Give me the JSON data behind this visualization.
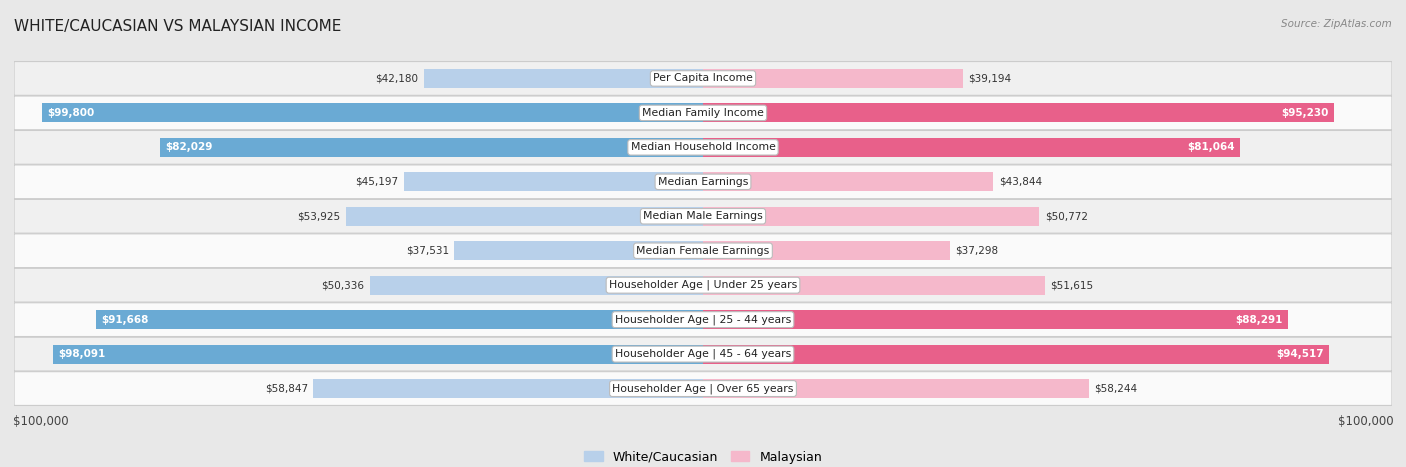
{
  "title": "WHITE/CAUCASIAN VS MALAYSIAN INCOME",
  "source": "Source: ZipAtlas.com",
  "categories": [
    "Per Capita Income",
    "Median Family Income",
    "Median Household Income",
    "Median Earnings",
    "Median Male Earnings",
    "Median Female Earnings",
    "Householder Age | Under 25 years",
    "Householder Age | 25 - 44 years",
    "Householder Age | 45 - 64 years",
    "Householder Age | Over 65 years"
  ],
  "white_values": [
    42180,
    99800,
    82029,
    45197,
    53925,
    37531,
    50336,
    91668,
    98091,
    58847
  ],
  "malaysian_values": [
    39194,
    95230,
    81064,
    43844,
    50772,
    37298,
    51615,
    88291,
    94517,
    58244
  ],
  "white_labels": [
    "$42,180",
    "$99,800",
    "$82,029",
    "$45,197",
    "$53,925",
    "$37,531",
    "$50,336",
    "$91,668",
    "$98,091",
    "$58,847"
  ],
  "malaysian_labels": [
    "$39,194",
    "$95,230",
    "$81,064",
    "$43,844",
    "$50,772",
    "$37,298",
    "$51,615",
    "$88,291",
    "$94,517",
    "$58,244"
  ],
  "max_value": 100000,
  "white_color_low": "#b8d0ea",
  "white_color_high": "#6aaad4",
  "malaysian_color_low": "#f5b8cb",
  "malaysian_color_high": "#e8608a",
  "bg_color": "#e8e8e8",
  "row_bg_even": "#f0f0f0",
  "row_bg_odd": "#fafafa",
  "label_box_color": "#ffffff",
  "threshold_high": 75000
}
